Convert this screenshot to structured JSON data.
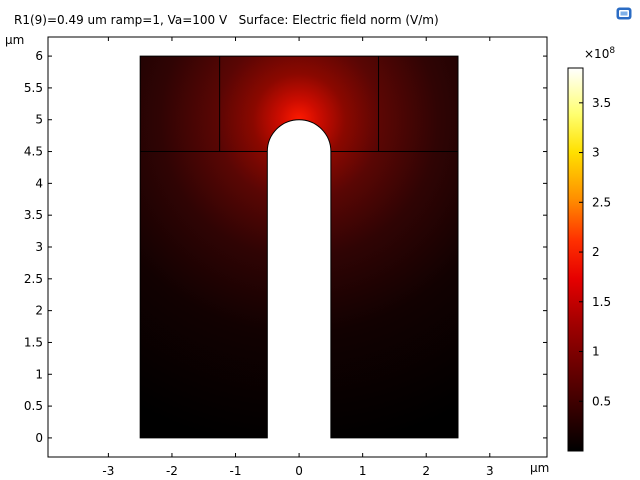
{
  "header": {
    "title": "R1(9)=0.49 um ramp=1, Va=100 V   Surface: Electric field norm (V/m)",
    "icon": "display-icon"
  },
  "chart_data": {
    "type": "heatmap",
    "title": "R1(9)=0.49 um ramp=1, Va=100 V   Surface: Electric field norm (V/m)",
    "quantity": "Electric field norm (V/m)",
    "xlabel": "μm",
    "ylabel": "μm",
    "xlim": [
      -3.95,
      3.9
    ],
    "ylim": [
      -0.3,
      6.3
    ],
    "xticks": [
      -3,
      -2,
      -1,
      0,
      1,
      2,
      3
    ],
    "yticks": [
      0,
      0.5,
      1,
      1.5,
      2,
      2.5,
      3,
      3.5,
      4,
      4.5,
      5,
      5.5,
      6
    ],
    "xtick_labels": [
      "-3",
      "-2",
      "-1",
      "0",
      "1",
      "2",
      "3"
    ],
    "ytick_labels": [
      "0",
      "0.5",
      "1",
      "1.5",
      "2",
      "2.5",
      "3",
      "3.5",
      "4",
      "4.5",
      "5",
      "5.5",
      "6"
    ],
    "domain": {
      "x_range": [
        -2.5,
        2.5
      ],
      "y_range": [
        0,
        6
      ],
      "slot_x_range": [
        -0.5,
        0.5
      ],
      "slot_tip_center": [
        0,
        4.5
      ],
      "slot_tip_radius": 0.5,
      "internal_boundaries": [
        {
          "x": [
            -2.5,
            -0.5
          ],
          "y": [
            4.5,
            4.5
          ]
        },
        {
          "x": [
            0.5,
            2.5
          ],
          "y": [
            4.5,
            4.5
          ]
        },
        {
          "x": [
            -1.25,
            -1.25
          ],
          "y": [
            4.5,
            6
          ]
        },
        {
          "x": [
            1.25,
            1.25
          ],
          "y": [
            4.5,
            6
          ]
        }
      ],
      "field_peak_location": [
        0,
        5.0
      ]
    },
    "colorbar": {
      "colormap": "thermal (black-red-yellow-white)",
      "exponent_label": "×10",
      "exponent": "8",
      "range": [
        0,
        3.85
      ],
      "ticks": [
        0.5,
        1,
        1.5,
        2,
        2.5,
        3,
        3.5
      ],
      "tick_labels": [
        "0.5",
        "1",
        "1.5",
        "2",
        "2.5",
        "3",
        "3.5"
      ]
    }
  }
}
